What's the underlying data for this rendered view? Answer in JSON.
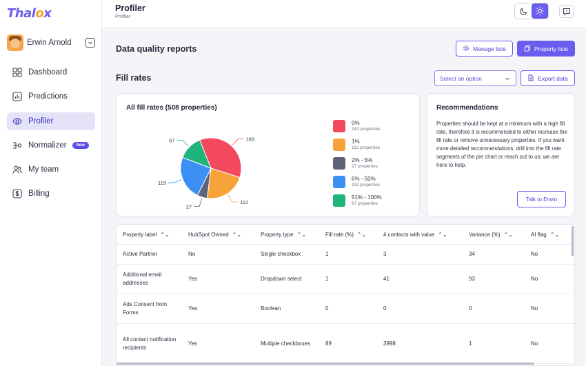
{
  "brand": {
    "logo_start": "Thal",
    "logo_o": "o",
    "logo_end": "x"
  },
  "user": {
    "name": "Erwin Arnold"
  },
  "nav": [
    {
      "label": "Dashboard",
      "icon": "grid-icon"
    },
    {
      "label": "Predictions",
      "icon": "bar-chart-icon"
    },
    {
      "label": "Profiler",
      "icon": "eye-icon",
      "active": true
    },
    {
      "label": "Normalizer",
      "icon": "flow-icon",
      "badge": "New"
    },
    {
      "label": "My team",
      "icon": "users-icon"
    },
    {
      "label": "Billing",
      "icon": "dollar-icon"
    }
  ],
  "header": {
    "title": "Profiler",
    "breadcrumb": "Profiler"
  },
  "section": {
    "reports_title": "Data quality reports",
    "manage_lists": "Manage lists",
    "property_lists": "Property lists",
    "fill_rates_title": "Fill rates",
    "select_placeholder": "Select an option",
    "export": "Export data"
  },
  "chart_card": {
    "title": "All fill rates (508 properties)"
  },
  "chart_data": {
    "type": "pie",
    "title": "All fill rates (508 properties)",
    "slices": [
      {
        "label": "0%",
        "value": 183,
        "sub": "183 properties",
        "color": "#f4485e"
      },
      {
        "label": "1%",
        "value": 112,
        "sub": "112 properties",
        "color": "#f8a23a"
      },
      {
        "label": "2% - 5%",
        "value": 27,
        "sub": "27 properties",
        "color": "#5e6478"
      },
      {
        "label": "6% - 50%",
        "value": 119,
        "sub": "119 properties",
        "color": "#3b8ff5"
      },
      {
        "label": "51% - 100%",
        "value": 67,
        "sub": "67 properties",
        "color": "#1fb57a"
      }
    ]
  },
  "recommendations": {
    "title": "Recommendations",
    "body": "Properties should be kept at a minimum with a high fill rate, therefore it is recommended to either increase the fill rate or remove unnecessary properties. If you want more detailed recommendations, drill into the fill rate segments of the pie chart or reach out to us; we are here to help.",
    "cta": "Talk to Erwin"
  },
  "table": {
    "columns": [
      "Property label",
      "HubSpot Owned",
      "Property type",
      "Fill rate (%)",
      "# contacts with value",
      "Variance (%)",
      "AI flag"
    ],
    "rows": [
      [
        "Active Partner",
        "No",
        "Single checkbox",
        "1",
        "3",
        "34",
        "No"
      ],
      [
        "Additional email addresses",
        "Yes",
        "Dropdown select",
        "1",
        "41",
        "93",
        "No"
      ],
      [
        "Ads Consent from Forms",
        "Yes",
        "Boolean",
        "0",
        "0",
        "0",
        "No"
      ],
      [
        "All contact notification recipients",
        "Yes",
        "Multiple checkboxes",
        "89",
        "3998",
        "1",
        "No"
      ]
    ]
  }
}
